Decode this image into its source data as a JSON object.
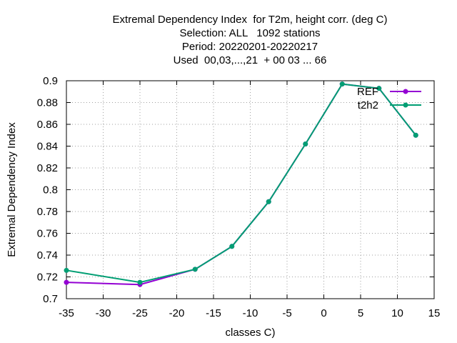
{
  "chart_data": {
    "type": "line",
    "title_lines": [
      "Extremal Dependency Index  for T2m, height corr. (deg C)",
      "Selection: ALL   1092 stations",
      "Period: 20220201-20220217",
      "Used  00,03,...,21  + 00 03 ... 66"
    ],
    "xlabel": "classes C)",
    "ylabel": "Extremal Dependency Index",
    "xlim": [
      -35,
      15
    ],
    "ylim": [
      0.7,
      0.9
    ],
    "xticks": [
      -35,
      -30,
      -25,
      -20,
      -15,
      -10,
      -5,
      0,
      5,
      10,
      15
    ],
    "yticks": [
      0.7,
      0.72,
      0.74,
      0.76,
      0.78,
      0.8,
      0.82,
      0.84,
      0.86,
      0.88,
      0.9
    ],
    "grid": true,
    "legend_position": "top-right",
    "series": [
      {
        "name": "REF",
        "color": "#9400d3",
        "x": [
          -35,
          -25,
          -17.5,
          -12.5,
          -7.5,
          -2.5,
          2.5,
          7.5,
          12.5
        ],
        "y": [
          0.715,
          0.713,
          0.727,
          0.748,
          0.789,
          0.842,
          0.897,
          0.893,
          0.85
        ]
      },
      {
        "name": "t2h2",
        "color": "#009e73",
        "x": [
          -35,
          -25,
          -17.5,
          -12.5,
          -7.5,
          -2.5,
          2.5,
          7.5,
          12.5
        ],
        "y": [
          0.726,
          0.715,
          0.727,
          0.748,
          0.789,
          0.842,
          0.897,
          0.893,
          0.85
        ]
      }
    ]
  }
}
